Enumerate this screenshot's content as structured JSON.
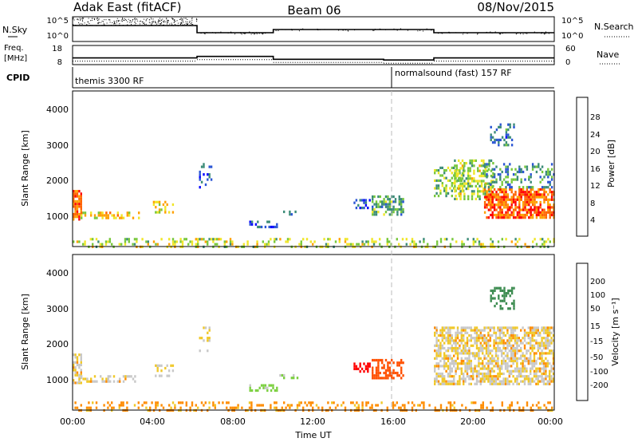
{
  "header": {
    "radar": "Adak East (fitACF)",
    "beam": "Beam 06",
    "date": "08/Nov/2015"
  },
  "panels": {
    "nsky": {
      "label": "N.Sky",
      "ticks": [
        "10^5",
        "10^0"
      ],
      "right_ticks": [
        "10^5",
        "10^0"
      ],
      "right_label": "N.Search"
    },
    "freq": {
      "label_top": "Freq.",
      "label_bottom": "[MHz]",
      "ticks": [
        "18",
        "8"
      ],
      "right_ticks": [
        "60",
        "0"
      ],
      "right_label": "Nave"
    },
    "cpid": {
      "label": "CPID",
      "entries": [
        "themis 3300 RF",
        "normalsound (fast) 157 RF"
      ]
    }
  },
  "axes": {
    "ylabel": "Slant Range [km]",
    "yticks": [
      "1000",
      "2000",
      "3000",
      "4000"
    ],
    "xticks": [
      "00:00",
      "04:00",
      "08:00",
      "12:00",
      "16:00",
      "20:00",
      "00:00"
    ],
    "xlabel": "Time UT"
  },
  "colorbars": {
    "power": {
      "label": "Power [dB]",
      "ticks": [
        "4",
        "8",
        "12",
        "16",
        "20",
        "24",
        "28"
      ],
      "colors": [
        "#0000ff",
        "#2a55d4",
        "#3c8c78",
        "#78c83c",
        "#f0e628",
        "#ffa000",
        "#ff6400",
        "#ff0000"
      ]
    },
    "velocity": {
      "label": "Velocity [m s⁻¹]",
      "ticks": [
        "200",
        "100",
        "50",
        "15",
        "-15",
        "-50",
        "-100",
        "-200"
      ],
      "colors": [
        "#2040c0",
        "#3c8c50",
        "#7cd040",
        "#c8c8c8",
        "#c8c8c8",
        "#f0c828",
        "#ff8c00",
        "#ff5000",
        "#ff0000"
      ]
    }
  },
  "chart_data": [
    {
      "type": "line",
      "title": "N.Sky / N.Search",
      "x_range_hours": [
        0,
        24
      ],
      "segments": [
        {
          "from": 0,
          "to": 6.2,
          "level": "high"
        },
        {
          "from": 6.2,
          "to": 10,
          "level": "low"
        },
        {
          "from": 10,
          "to": 18,
          "level": "medium"
        },
        {
          "from": 18,
          "to": 24,
          "level": "low"
        }
      ]
    },
    {
      "type": "line",
      "title": "Freq. [MHz] / Nave",
      "y_range": [
        8,
        18
      ],
      "segments": [
        {
          "from": 0,
          "to": 6.2,
          "freq": 11.5
        },
        {
          "from": 6.2,
          "to": 10,
          "freq": 12.3
        },
        {
          "from": 10,
          "to": 15.5,
          "freq": 10.8
        },
        {
          "from": 15.5,
          "to": 18,
          "freq": 10.4
        },
        {
          "from": 18,
          "to": 24,
          "freq": 11.5
        }
      ]
    },
    {
      "type": "heatmap",
      "title": "Power [dB]",
      "x_range_hours": [
        0,
        24
      ],
      "y_range_km": [
        180,
        4500
      ],
      "clusters": [
        {
          "t0": 0,
          "t1": 0.4,
          "r0": 900,
          "r1": 1750,
          "value": 26,
          "density": 0.8
        },
        {
          "t0": 0.3,
          "t1": 3.3,
          "r0": 950,
          "r1": 1150,
          "value": 20,
          "density": 0.5
        },
        {
          "t0": 4.0,
          "t1": 5.0,
          "r0": 1100,
          "r1": 1450,
          "value": 18,
          "density": 0.4
        },
        {
          "t0": 6.3,
          "t1": 6.9,
          "r0": 1850,
          "r1": 2500,
          "value": 6,
          "density": 0.3
        },
        {
          "t0": 8.8,
          "t1": 10.2,
          "r0": 700,
          "r1": 900,
          "value": 6,
          "density": 0.45
        },
        {
          "t0": 10.3,
          "t1": 11.3,
          "r0": 1050,
          "r1": 1180,
          "value": 6,
          "density": 0.35
        },
        {
          "t0": 14.0,
          "t1": 14.8,
          "r0": 1250,
          "r1": 1500,
          "value": 6,
          "density": 0.5
        },
        {
          "t0": 14.9,
          "t1": 16.5,
          "r0": 1100,
          "r1": 1600,
          "value": 12,
          "density": 0.6
        },
        {
          "t0": 18.0,
          "t1": 19.5,
          "r0": 1600,
          "r1": 2400,
          "value": 14,
          "density": 0.5
        },
        {
          "t0": 19.0,
          "t1": 21.0,
          "r0": 1500,
          "r1": 2600,
          "value": 16,
          "density": 0.5
        },
        {
          "t0": 20.5,
          "t1": 24.0,
          "r0": 950,
          "r1": 1800,
          "value": 26,
          "density": 0.7
        },
        {
          "t0": 20.5,
          "t1": 24.0,
          "r0": 1800,
          "r1": 2500,
          "value": 10,
          "density": 0.35
        },
        {
          "t0": 20.8,
          "t1": 22.0,
          "r0": 3000,
          "r1": 3600,
          "value": 8,
          "density": 0.35
        },
        {
          "t0": 0,
          "t1": 24,
          "r0": 180,
          "r1": 420,
          "value": 16,
          "density": 0.3
        }
      ]
    },
    {
      "type": "heatmap",
      "title": "Velocity [m s⁻¹]",
      "x_range_hours": [
        0,
        24
      ],
      "y_range_km": [
        180,
        4500
      ],
      "clusters": [
        {
          "t0": 0,
          "t1": 0.4,
          "r0": 900,
          "r1": 1750,
          "value": 0,
          "density": 0.6
        },
        {
          "t0": 0.3,
          "t1": 3.3,
          "r0": 950,
          "r1": 1150,
          "value": 0,
          "density": 0.5
        },
        {
          "t0": 4.0,
          "t1": 5.0,
          "r0": 1100,
          "r1": 1450,
          "value": 0,
          "density": 0.4
        },
        {
          "t0": 6.3,
          "t1": 6.9,
          "r0": 1850,
          "r1": 2500,
          "value": 0,
          "density": 0.3
        },
        {
          "t0": 8.8,
          "t1": 10.2,
          "r0": 700,
          "r1": 900,
          "value": 60,
          "density": 0.45
        },
        {
          "t0": 10.3,
          "t1": 11.3,
          "r0": 1050,
          "r1": 1180,
          "value": 60,
          "density": 0.35
        },
        {
          "t0": 14.0,
          "t1": 14.8,
          "r0": 1250,
          "r1": 1500,
          "value": -120,
          "density": 0.55
        },
        {
          "t0": 14.9,
          "t1": 16.5,
          "r0": 1100,
          "r1": 1600,
          "value": -80,
          "density": 0.6
        },
        {
          "t0": 18.0,
          "t1": 24.0,
          "r0": 900,
          "r1": 2500,
          "value": 0,
          "density": 0.65
        },
        {
          "t0": 20.8,
          "t1": 22.0,
          "r0": 3000,
          "r1": 3600,
          "value": 180,
          "density": 0.35
        },
        {
          "t0": 0,
          "t1": 24,
          "r0": 180,
          "r1": 420,
          "value": -30,
          "density": 0.3
        }
      ]
    }
  ]
}
